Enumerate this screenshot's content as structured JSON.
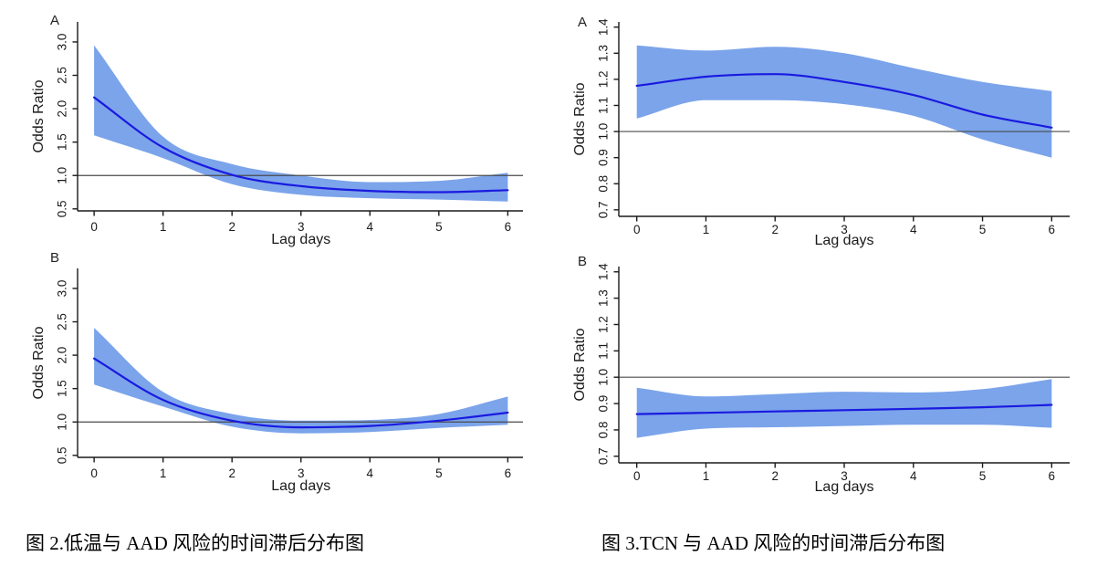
{
  "style": {
    "background": "#ffffff",
    "band_color": "#7ba4ea",
    "line_color": "#1a1ae0",
    "reference_color": "#4a4a4a",
    "axis_color": "#1a1a1a",
    "text_color": "#1a1a1a",
    "panel_label_color": "#222222"
  },
  "figures": [
    {
      "caption": "图 2.低温与 AAD 风险的时间滞后分布图",
      "panels": [
        "A",
        "B"
      ]
    },
    {
      "caption": "图 3.TCN 与 AAD 风险的时间滞后分布图",
      "panels": [
        "A",
        "B"
      ]
    }
  ],
  "chart_data": [
    {
      "type": "line",
      "figure": "图 2",
      "panel_label": "A",
      "title": "",
      "xlabel": "Lag days",
      "ylabel": "Odds Ratio",
      "x": [
        0,
        1,
        2,
        3,
        4,
        5,
        6
      ],
      "xticks": [
        0,
        1,
        2,
        3,
        4,
        5,
        6
      ],
      "yticks": [
        0.5,
        1.0,
        1.5,
        2.0,
        2.5,
        3.0
      ],
      "xlim": [
        -0.24,
        6.22
      ],
      "ylim": [
        0.47,
        3.3
      ],
      "reference_line": 1.0,
      "grid": false,
      "legend": false,
      "series": [
        {
          "name": "odds_ratio",
          "values": [
            2.17,
            1.42,
            1.01,
            0.84,
            0.77,
            0.75,
            0.78
          ]
        },
        {
          "name": "ci_lower",
          "values": [
            1.6,
            1.26,
            0.87,
            0.71,
            0.66,
            0.64,
            0.61
          ]
        },
        {
          "name": "ci_upper",
          "values": [
            2.95,
            1.58,
            1.17,
            1.0,
            0.9,
            0.92,
            1.04
          ]
        }
      ]
    },
    {
      "type": "line",
      "figure": "图 2",
      "panel_label": "B",
      "title": "",
      "xlabel": "Lag days",
      "ylabel": "Odds Ratio",
      "x": [
        0,
        1,
        2,
        3,
        4,
        5,
        6
      ],
      "xticks": [
        0,
        1,
        2,
        3,
        4,
        5,
        6
      ],
      "yticks": [
        0.5,
        1.0,
        1.5,
        2.0,
        2.5,
        3.0
      ],
      "xlim": [
        -0.24,
        6.22
      ],
      "ylim": [
        0.47,
        3.3
      ],
      "reference_line": 1.0,
      "grid": false,
      "legend": false,
      "series": [
        {
          "name": "odds_ratio",
          "values": [
            1.95,
            1.33,
            1.02,
            0.92,
            0.94,
            1.02,
            1.14
          ]
        },
        {
          "name": "ci_lower",
          "values": [
            1.56,
            1.23,
            0.93,
            0.83,
            0.85,
            0.91,
            0.96
          ]
        },
        {
          "name": "ci_upper",
          "values": [
            2.41,
            1.45,
            1.12,
            1.02,
            1.03,
            1.12,
            1.38
          ]
        }
      ]
    },
    {
      "type": "line",
      "figure": "图 3",
      "panel_label": "A",
      "title": "",
      "xlabel": "Lag days",
      "ylabel": "Odds Ratio",
      "x": [
        0,
        1,
        2,
        3,
        4,
        5,
        6
      ],
      "xticks": [
        0,
        1,
        2,
        3,
        4,
        5,
        6
      ],
      "yticks": [
        0.7,
        0.8,
        0.9,
        1.0,
        1.1,
        1.2,
        1.3,
        1.4
      ],
      "xlim": [
        -0.26,
        6.26
      ],
      "ylim": [
        0.675,
        1.42
      ],
      "reference_line": 1.0,
      "grid": false,
      "legend": false,
      "series": [
        {
          "name": "odds_ratio",
          "values": [
            1.175,
            1.21,
            1.22,
            1.19,
            1.14,
            1.065,
            1.015
          ]
        },
        {
          "name": "ci_lower",
          "values": [
            1.05,
            1.12,
            1.12,
            1.105,
            1.06,
            0.97,
            0.9
          ]
        },
        {
          "name": "ci_upper",
          "values": [
            1.33,
            1.31,
            1.325,
            1.3,
            1.243,
            1.19,
            1.155
          ]
        }
      ]
    },
    {
      "type": "line",
      "figure": "图 3",
      "panel_label": "B",
      "title": "",
      "xlabel": "Lag days",
      "ylabel": "Odds Ratio",
      "x": [
        0,
        1,
        2,
        3,
        4,
        5,
        6
      ],
      "xticks": [
        0,
        1,
        2,
        3,
        4,
        5,
        6
      ],
      "yticks": [
        0.7,
        0.8,
        0.9,
        1.0,
        1.1,
        1.2,
        1.3,
        1.4
      ],
      "xlim": [
        -0.26,
        6.26
      ],
      "ylim": [
        0.675,
        1.42
      ],
      "reference_line": 1.0,
      "grid": false,
      "legend": false,
      "series": [
        {
          "name": "odds_ratio",
          "values": [
            0.86,
            0.865,
            0.87,
            0.875,
            0.88,
            0.886,
            0.895
          ]
        },
        {
          "name": "ci_lower",
          "values": [
            0.77,
            0.805,
            0.81,
            0.815,
            0.82,
            0.82,
            0.808
          ]
        },
        {
          "name": "ci_upper",
          "values": [
            0.96,
            0.927,
            0.936,
            0.945,
            0.942,
            0.955,
            0.993
          ]
        }
      ]
    }
  ]
}
